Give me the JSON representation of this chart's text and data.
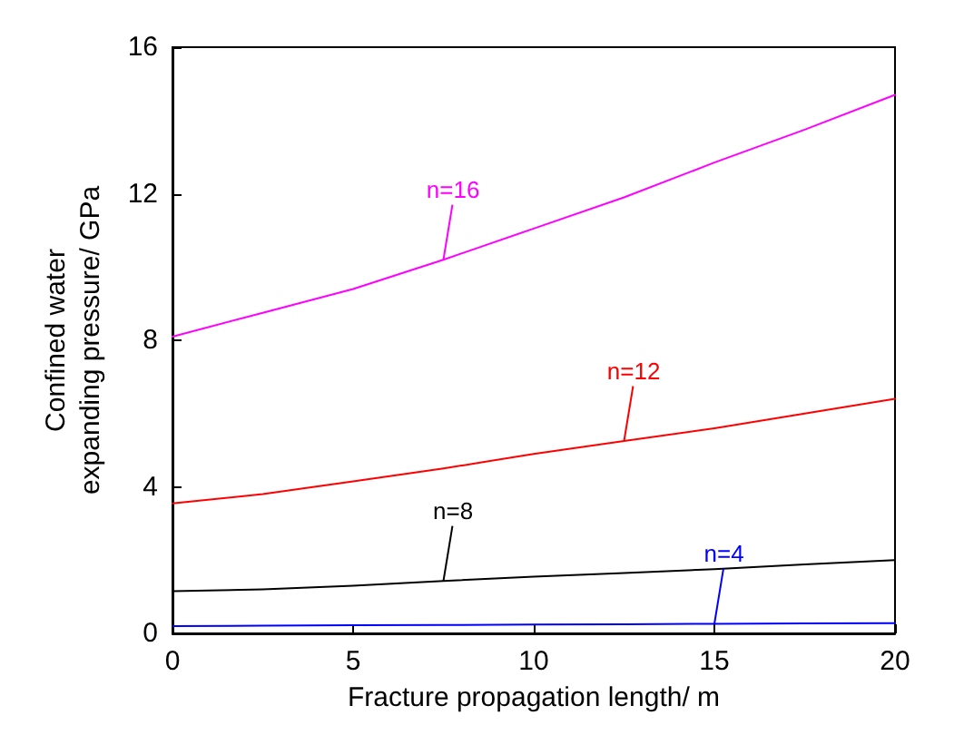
{
  "chart_data": {
    "type": "line",
    "xlabel": "Fracture propagation length/ m",
    "ylabel": "Confined water\nexpanding pressure/ GPa",
    "x": [
      0,
      2.5,
      5,
      7.5,
      10,
      12.5,
      15,
      17.5,
      20
    ],
    "series": [
      {
        "name": "n=16",
        "color": "#ff00ff",
        "values": [
          8.1,
          8.75,
          9.4,
          10.2,
          11.05,
          11.9,
          12.85,
          13.75,
          14.7
        ]
      },
      {
        "name": "n=12",
        "color": "#ff0000",
        "values": [
          3.55,
          3.8,
          4.15,
          4.5,
          4.9,
          5.25,
          5.6,
          6.0,
          6.4
        ]
      },
      {
        "name": "n=8",
        "color": "#000000",
        "values": [
          1.15,
          1.2,
          1.3,
          1.43,
          1.55,
          1.65,
          1.75,
          1.88,
          2.0
        ]
      },
      {
        "name": "n=4",
        "color": "#0000ff",
        "values": [
          0.2,
          0.21,
          0.22,
          0.23,
          0.24,
          0.25,
          0.26,
          0.27,
          0.28
        ]
      }
    ],
    "xlim": [
      0,
      20
    ],
    "xticks": [
      0,
      5,
      10,
      15,
      20
    ],
    "ylim": [
      0,
      16
    ],
    "yticks": [
      0,
      4,
      8,
      12,
      16
    ],
    "grid": false,
    "legend": false,
    "marker": "none",
    "line_style": "solid"
  }
}
